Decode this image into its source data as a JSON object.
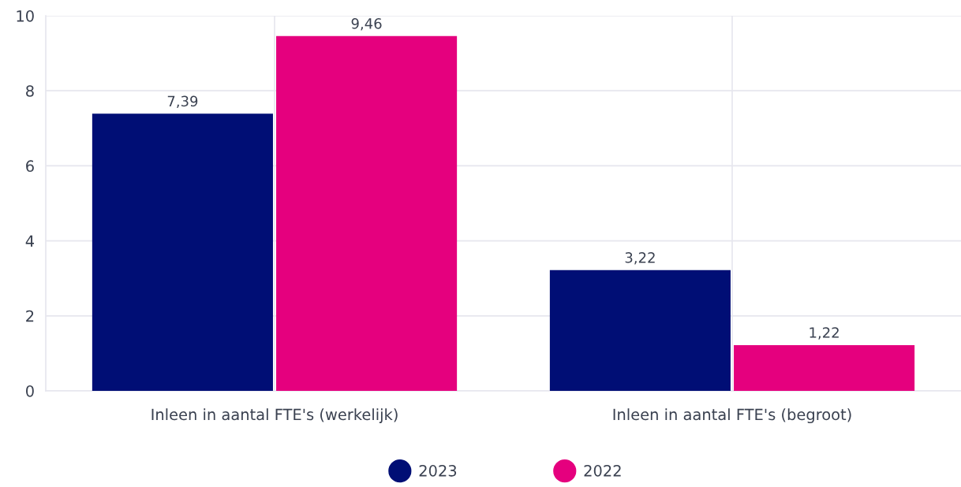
{
  "chart_data": {
    "type": "bar",
    "categories": [
      "Inleen in aantal FTE's (werkelijk)",
      "Inleen in aantal FTE's (begroot)"
    ],
    "series": [
      {
        "name": "2023",
        "color": "#000e75",
        "values": [
          7.39,
          3.22
        ],
        "value_labels": [
          "7,39",
          "3,22"
        ]
      },
      {
        "name": "2022",
        "color": "#e5007e",
        "values": [
          9.46,
          1.22
        ],
        "value_labels": [
          "9,46",
          "1,22"
        ]
      }
    ],
    "ylim": [
      0,
      10
    ],
    "yticks": [
      0,
      2,
      4,
      6,
      8,
      10
    ],
    "grid": true,
    "legend": "bottom"
  }
}
